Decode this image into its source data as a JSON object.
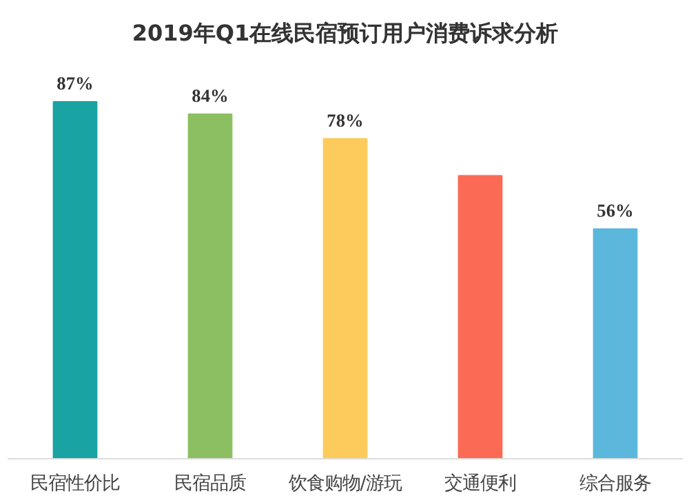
{
  "chart_data": {
    "type": "bar",
    "title": "2019年Q1在线民宿预订用户消费诉求分析",
    "categories": [
      "民宿性价比",
      "民宿品质",
      "饮食购物/游玩",
      "交通便利",
      "综合服务"
    ],
    "values": [
      87,
      84,
      78,
      69,
      56
    ],
    "colors": [
      "#1aa3a3",
      "#8cbf62",
      "#fccb5c",
      "#fb6a55",
      "#5bb8dc"
    ],
    "value_labels": [
      "87%",
      "84%",
      "78%",
      null,
      "56%"
    ],
    "tick_labels": "x"
  }
}
